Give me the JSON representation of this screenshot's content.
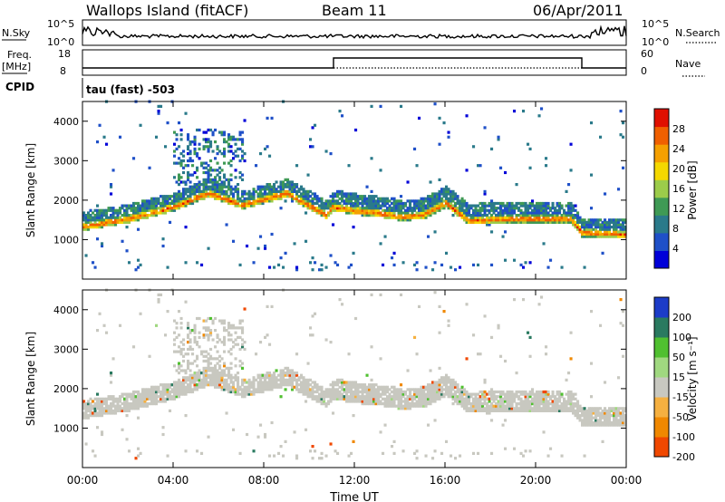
{
  "header": {
    "title": "Wallops Island (fitACF)",
    "beam": "Beam 11",
    "date": "06/Apr/2011"
  },
  "top_panels": {
    "nsky_label": "N.Sky",
    "nsky_ticks": [
      "10^5",
      "10^0"
    ],
    "nsearch_label": "N.Search",
    "nsearch_ticks": [
      "10^5",
      "10^0"
    ],
    "freq_label": "Freq.",
    "freq_unit": "[MHz]",
    "freq_ticks": [
      "18",
      "8"
    ],
    "nave_label": "Nave",
    "nave_ticks": [
      "60",
      "0"
    ],
    "cpid_label": "CPID",
    "cpid_value": "tau (fast) -503"
  },
  "colors": {
    "power": [
      "#0000d8",
      "#1f50c8",
      "#2a7a8a",
      "#3f9a55",
      "#9ccc4a",
      "#f4d800",
      "#f5a000",
      "#f06000",
      "#e01000"
    ],
    "velocity": [
      "#e00000",
      "#f04800",
      "#f08800",
      "#f5b040",
      "#c8c8c0",
      "#a0d880",
      "#50c030",
      "#2a7a60",
      "#1c3cc8"
    ]
  },
  "chart_data": [
    {
      "type": "heatmap",
      "name": "power",
      "xlabel": "",
      "ylabel": "Slant Range [km]",
      "ylim": [
        0,
        4500
      ],
      "yticks": [
        "1000",
        "2000",
        "3000",
        "4000"
      ],
      "xlim": [
        0,
        24
      ],
      "xticks": [
        "00:00",
        "04:00",
        "08:00",
        "12:00",
        "16:00",
        "20:00",
        "00:00"
      ],
      "colorbar_label": "Power [dB]",
      "colorbar_ticks": [
        "4",
        "8",
        "12",
        "16",
        "20",
        "24",
        "28"
      ],
      "colorbar_range": [
        0,
        32
      ],
      "main_echo_band_km": [
        [
          0,
          1300
        ],
        [
          2,
          1500
        ],
        [
          4,
          1800
        ],
        [
          5.5,
          2150
        ],
        [
          7,
          1850
        ],
        [
          9,
          2150
        ],
        [
          10.7,
          1600
        ],
        [
          11,
          1800
        ],
        [
          12,
          1700
        ],
        [
          13,
          1650
        ],
        [
          14,
          1550
        ],
        [
          15,
          1600
        ],
        [
          16,
          1900
        ],
        [
          17,
          1450
        ],
        [
          19,
          1500
        ],
        [
          21.5,
          1500
        ],
        [
          22,
          1150
        ],
        [
          24,
          1100
        ]
      ]
    },
    {
      "type": "heatmap",
      "name": "velocity",
      "xlabel": "Time UT",
      "ylabel": "Slant Range [km]",
      "ylim": [
        0,
        4500
      ],
      "yticks": [
        "1000",
        "2000",
        "3000",
        "4000"
      ],
      "xlim": [
        0,
        24
      ],
      "xticks": [
        "00:00",
        "04:00",
        "08:00",
        "12:00",
        "16:00",
        "20:00",
        "00:00"
      ],
      "colorbar_label": "Velocity [m s⁻¹]",
      "colorbar_ticks": [
        "200",
        "100",
        "50",
        "15",
        "-15",
        "-50",
        "-100",
        "-200"
      ],
      "colorbar_range": [
        -250,
        250
      ]
    }
  ]
}
